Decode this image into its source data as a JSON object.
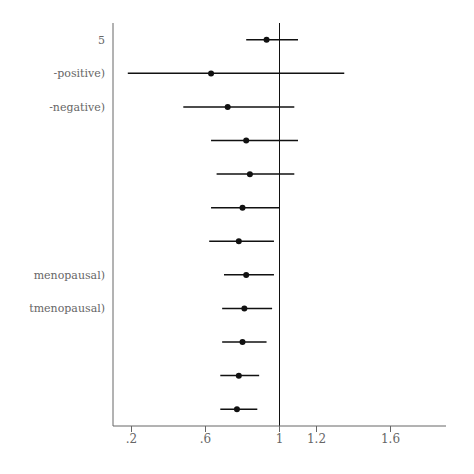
{
  "chart_data": {
    "type": "forest",
    "categories": [
      "5",
      "-positive)",
      "-negative)",
      null,
      null,
      null,
      null,
      "menopausal)",
      "tmenopausal)",
      null,
      null,
      null
    ],
    "values": [
      0.93,
      0.63,
      0.72,
      0.82,
      0.84,
      0.8,
      0.78,
      0.82,
      0.81,
      0.8,
      0.78,
      0.77
    ],
    "ci_low": [
      0.82,
      0.18,
      0.48,
      0.63,
      0.66,
      0.63,
      0.62,
      0.7,
      0.69,
      0.69,
      0.68,
      0.68
    ],
    "ci_high": [
      1.1,
      1.35,
      1.08,
      1.1,
      1.08,
      1.0,
      0.97,
      0.97,
      0.96,
      0.93,
      0.89,
      0.88
    ],
    "xlim": [
      0.1,
      1.9
    ],
    "xticks": [
      {
        "value": 0.2,
        "label": ".2"
      },
      {
        "value": 0.6,
        "label": ".6"
      },
      1,
      1.2,
      1.6
    ],
    "ref_line": 1,
    "color": "#111111",
    "grid": false
  }
}
